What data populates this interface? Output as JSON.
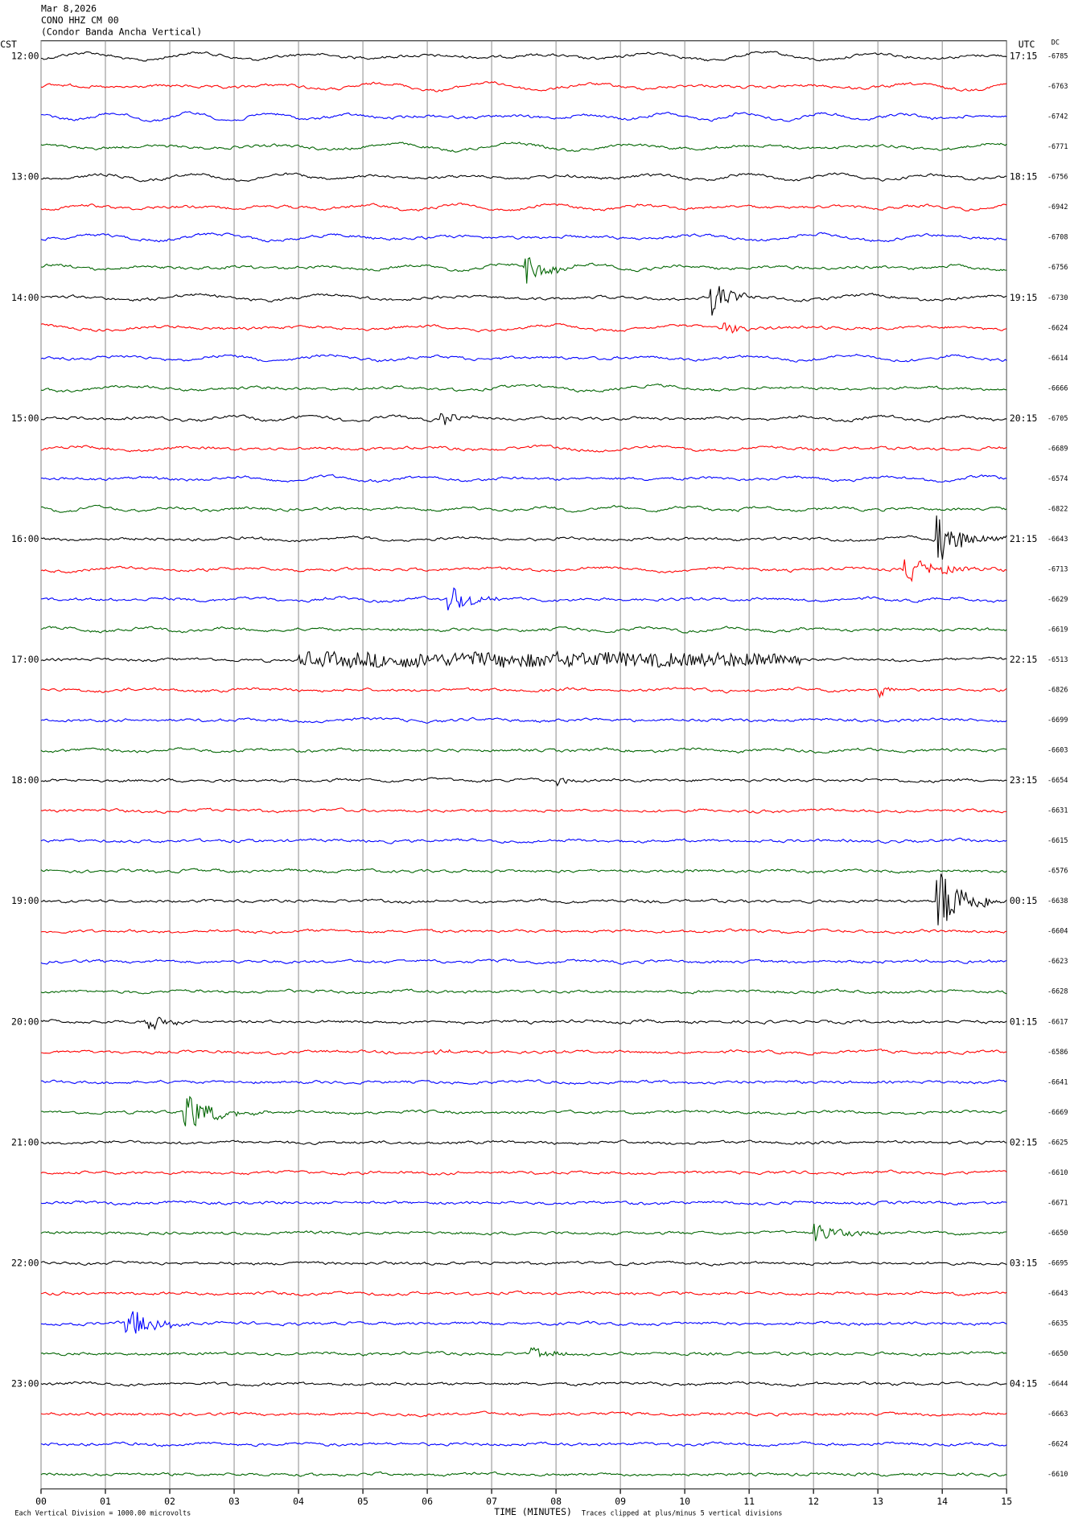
{
  "header": {
    "date": "Mar 8,2026",
    "station": "CONO HHZ CM 00",
    "description": "(Condor Banda Ancha Vertical)"
  },
  "left_label": "CST",
  "right_label": "UTC",
  "dc_label": "DC",
  "cst_times": [
    "12:00",
    "13:00",
    "14:00",
    "15:00",
    "16:00",
    "17:00",
    "18:00",
    "19:00",
    "20:00",
    "21:00",
    "22:00",
    "23:00"
  ],
  "utc_times": [
    "17:15",
    "18:15",
    "19:15",
    "20:15",
    "21:15",
    "22:15",
    "23:15",
    "00:15",
    "01:15",
    "02:15",
    "03:15",
    "04:15"
  ],
  "dc_values": [
    "-6785",
    "-6763",
    "-6742",
    "-6771",
    "-6756",
    "-6942",
    "-6708",
    "-6756",
    "-6730",
    "-6624",
    "-6614",
    "-6666",
    "-6705",
    "-6689",
    "-6574",
    "-6822",
    "-6643",
    "-6713",
    "-6629",
    "-6619",
    "-6513",
    "-6826",
    "-6699",
    "-6603",
    "-6654",
    "-6631",
    "-6615",
    "-6576",
    "-6638",
    "-6604",
    "-6623",
    "-6628",
    "-6617",
    "-6586",
    "-6641",
    "-6669",
    "-6625",
    "-6610",
    "-6671",
    "-6650",
    "-6695",
    "-6643",
    "-6635",
    "-6650",
    "-6644",
    "-6663",
    "-6624",
    "-6610"
  ],
  "x_ticks": [
    "00",
    "01",
    "02",
    "03",
    "04",
    "05",
    "06",
    "07",
    "08",
    "09",
    "10",
    "11",
    "12",
    "13",
    "14",
    "15"
  ],
  "x_label": "TIME (MINUTES)",
  "footer": {
    "scale": "Each Vertical Division = 1000.00 microvolts",
    "clip": "Traces clipped at plus/minus 5 vertical divisions"
  }
}
